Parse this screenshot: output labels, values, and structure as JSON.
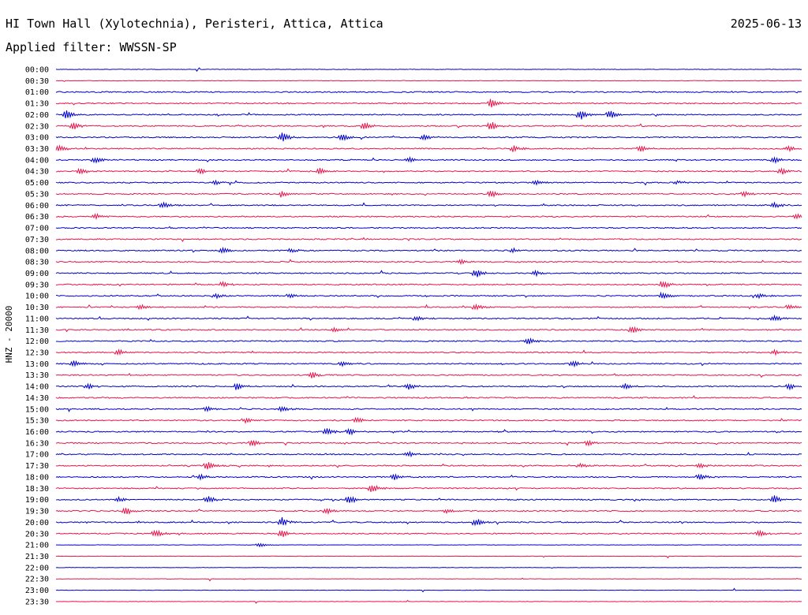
{
  "header": {
    "station": "HI Town Hall (Xylotechnia), Peristeri, Attica, Attica",
    "date": "2025-06-13",
    "filter": "Applied filter: WWSSN-SP"
  },
  "chart_data": {
    "type": "line",
    "ylabel": "HNZ - 20000",
    "y_tick_labels": [
      "00:00",
      "00:30",
      "01:00",
      "01:30",
      "02:00",
      "02:30",
      "03:00",
      "03:30",
      "04:00",
      "04:30",
      "05:00",
      "05:30",
      "06:00",
      "06:30",
      "07:00",
      "07:30",
      "08:00",
      "08:30",
      "09:00",
      "09:30",
      "10:00",
      "10:30",
      "11:00",
      "11:30",
      "12:00",
      "12:30",
      "13:00",
      "13:30",
      "14:00",
      "14:30",
      "15:00",
      "15:30",
      "16:00",
      "16:30",
      "17:00",
      "17:30",
      "18:00",
      "18:30",
      "19:00",
      "19:30",
      "20:00",
      "20:30",
      "21:00",
      "21:30",
      "22:00",
      "22:30",
      "23:00",
      "23:30"
    ],
    "row_duration_minutes": 30,
    "colors": [
      "#0000cc",
      "#e8144b"
    ],
    "grid": false,
    "events": [
      {
        "row": 3,
        "t": 0.58,
        "amp": 1.0
      },
      {
        "row": 4,
        "t": 0.01,
        "amp": 1.0
      },
      {
        "row": 4,
        "t": 0.7,
        "amp": 1.0
      },
      {
        "row": 4,
        "t": 0.74,
        "amp": 0.9
      },
      {
        "row": 5,
        "t": 0.02,
        "amp": 0.8
      },
      {
        "row": 5,
        "t": 0.41,
        "amp": 0.8
      },
      {
        "row": 5,
        "t": 0.58,
        "amp": 0.9
      },
      {
        "row": 6,
        "t": 0.3,
        "amp": 1.0
      },
      {
        "row": 6,
        "t": 0.38,
        "amp": 0.7
      },
      {
        "row": 6,
        "t": 0.49,
        "amp": 0.6
      },
      {
        "row": 7,
        "t": 0.0,
        "amp": 0.7
      },
      {
        "row": 7,
        "t": 0.61,
        "amp": 0.7
      },
      {
        "row": 7,
        "t": 0.78,
        "amp": 0.7
      },
      {
        "row": 7,
        "t": 0.98,
        "amp": 0.6
      },
      {
        "row": 8,
        "t": 0.05,
        "amp": 0.6
      },
      {
        "row": 8,
        "t": 0.47,
        "amp": 0.5
      },
      {
        "row": 8,
        "t": 0.96,
        "amp": 0.6
      },
      {
        "row": 9,
        "t": 0.03,
        "amp": 0.6
      },
      {
        "row": 9,
        "t": 0.19,
        "amp": 0.6
      },
      {
        "row": 9,
        "t": 0.35,
        "amp": 0.7
      },
      {
        "row": 9,
        "t": 0.97,
        "amp": 0.7
      },
      {
        "row": 10,
        "t": 0.21,
        "amp": 0.5
      },
      {
        "row": 10,
        "t": 0.64,
        "amp": 0.5
      },
      {
        "row": 10,
        "t": 0.83,
        "amp": 0.5
      },
      {
        "row": 11,
        "t": 0.3,
        "amp": 0.5
      },
      {
        "row": 11,
        "t": 0.58,
        "amp": 0.8
      },
      {
        "row": 11,
        "t": 0.92,
        "amp": 0.6
      },
      {
        "row": 12,
        "t": 0.14,
        "amp": 0.7
      },
      {
        "row": 12,
        "t": 0.96,
        "amp": 0.6
      },
      {
        "row": 13,
        "t": 0.05,
        "amp": 0.5
      },
      {
        "row": 13,
        "t": 0.99,
        "amp": 0.5
      },
      {
        "row": 16,
        "t": 0.22,
        "amp": 0.6
      },
      {
        "row": 16,
        "t": 0.31,
        "amp": 0.5
      },
      {
        "row": 16,
        "t": 0.61,
        "amp": 0.5
      },
      {
        "row": 17,
        "t": 0.54,
        "amp": 0.5
      },
      {
        "row": 18,
        "t": 0.56,
        "amp": 0.8
      },
      {
        "row": 18,
        "t": 0.64,
        "amp": 0.5
      },
      {
        "row": 19,
        "t": 0.22,
        "amp": 0.5
      },
      {
        "row": 19,
        "t": 0.81,
        "amp": 0.8
      },
      {
        "row": 20,
        "t": 0.21,
        "amp": 0.5
      },
      {
        "row": 20,
        "t": 0.31,
        "amp": 0.5
      },
      {
        "row": 20,
        "t": 0.81,
        "amp": 0.7
      },
      {
        "row": 20,
        "t": 0.94,
        "amp": 0.5
      },
      {
        "row": 21,
        "t": 0.11,
        "amp": 0.5
      },
      {
        "row": 21,
        "t": 0.56,
        "amp": 0.6
      },
      {
        "row": 21,
        "t": 0.98,
        "amp": 0.6
      },
      {
        "row": 22,
        "t": 0.48,
        "amp": 0.5
      },
      {
        "row": 22,
        "t": 0.96,
        "amp": 0.6
      },
      {
        "row": 23,
        "t": 0.37,
        "amp": 0.5
      },
      {
        "row": 23,
        "t": 0.77,
        "amp": 0.7
      },
      {
        "row": 24,
        "t": 0.63,
        "amp": 0.7
      },
      {
        "row": 25,
        "t": 0.08,
        "amp": 0.6
      },
      {
        "row": 25,
        "t": 0.96,
        "amp": 0.5
      },
      {
        "row": 26,
        "t": 0.02,
        "amp": 0.6
      },
      {
        "row": 26,
        "t": 0.38,
        "amp": 0.5
      },
      {
        "row": 26,
        "t": 0.69,
        "amp": 0.6
      },
      {
        "row": 27,
        "t": 0.34,
        "amp": 0.7
      },
      {
        "row": 28,
        "t": 0.04,
        "amp": 0.5
      },
      {
        "row": 28,
        "t": 0.24,
        "amp": 0.7
      },
      {
        "row": 28,
        "t": 0.47,
        "amp": 0.7
      },
      {
        "row": 28,
        "t": 0.76,
        "amp": 0.6
      },
      {
        "row": 28,
        "t": 0.98,
        "amp": 0.6
      },
      {
        "row": 30,
        "t": 0.2,
        "amp": 0.5
      },
      {
        "row": 30,
        "t": 0.3,
        "amp": 0.7
      },
      {
        "row": 31,
        "t": 0.25,
        "amp": 0.5
      },
      {
        "row": 31,
        "t": 0.4,
        "amp": 0.6
      },
      {
        "row": 32,
        "t": 0.36,
        "amp": 0.7
      },
      {
        "row": 32,
        "t": 0.39,
        "amp": 0.8
      },
      {
        "row": 33,
        "t": 0.26,
        "amp": 0.8
      },
      {
        "row": 33,
        "t": 0.71,
        "amp": 0.6
      },
      {
        "row": 34,
        "t": 0.47,
        "amp": 0.5
      },
      {
        "row": 35,
        "t": 0.2,
        "amp": 0.9
      },
      {
        "row": 35,
        "t": 0.7,
        "amp": 0.5
      },
      {
        "row": 35,
        "t": 0.86,
        "amp": 0.5
      },
      {
        "row": 36,
        "t": 0.19,
        "amp": 0.6
      },
      {
        "row": 36,
        "t": 0.45,
        "amp": 0.7
      },
      {
        "row": 36,
        "t": 0.86,
        "amp": 0.8
      },
      {
        "row": 37,
        "t": 0.42,
        "amp": 1.0
      },
      {
        "row": 38,
        "t": 0.08,
        "amp": 0.5
      },
      {
        "row": 38,
        "t": 0.2,
        "amp": 0.7
      },
      {
        "row": 38,
        "t": 0.39,
        "amp": 0.8
      },
      {
        "row": 38,
        "t": 0.96,
        "amp": 0.8
      },
      {
        "row": 39,
        "t": 0.09,
        "amp": 0.9
      },
      {
        "row": 39,
        "t": 0.36,
        "amp": 0.6
      },
      {
        "row": 39,
        "t": 0.52,
        "amp": 0.5
      },
      {
        "row": 40,
        "t": 0.3,
        "amp": 0.8
      },
      {
        "row": 40,
        "t": 0.56,
        "amp": 0.8
      },
      {
        "row": 41,
        "t": 0.13,
        "amp": 0.8
      },
      {
        "row": 41,
        "t": 0.3,
        "amp": 0.7
      },
      {
        "row": 41,
        "t": 0.94,
        "amp": 0.7
      },
      {
        "row": 42,
        "t": 0.27,
        "amp": 0.4
      }
    ]
  }
}
